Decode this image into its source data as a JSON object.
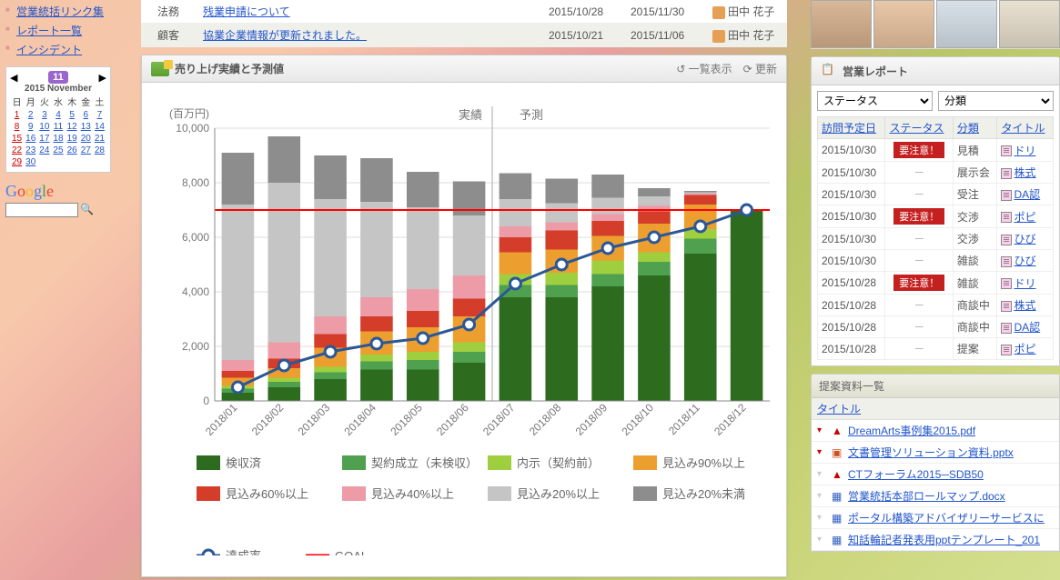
{
  "sidebar": {
    "links": [
      "営業統括リンク集",
      "レポート一覧",
      "インシデント"
    ]
  },
  "calendar": {
    "month_num": "11",
    "month_label": "2015 November",
    "dow": [
      "日",
      "月",
      "火",
      "水",
      "木",
      "金",
      "土"
    ],
    "weeks": [
      [
        1,
        2,
        3,
        4,
        5,
        6,
        7
      ],
      [
        8,
        9,
        10,
        11,
        12,
        13,
        14
      ],
      [
        15,
        16,
        17,
        18,
        19,
        20,
        21
      ],
      [
        22,
        23,
        24,
        25,
        26,
        27,
        28
      ],
      [
        29,
        30,
        null,
        null,
        null,
        null,
        null
      ]
    ]
  },
  "notices": [
    {
      "cat": "法務",
      "title": "残業申請について",
      "date1": "2015/10/28",
      "date2": "2015/11/30",
      "user": "田中 花子"
    },
    {
      "cat": "顧客",
      "title": "協業企業情報が更新されました。",
      "date1": "2015/10/21",
      "date2": "2015/11/06",
      "user": "田中 花子"
    }
  ],
  "chart": {
    "title": "売り上げ実績と予測値",
    "action_list": "一覧表示",
    "action_refresh": "更新",
    "y_label": "(百万円)",
    "y_max": 10000,
    "y_step": 2000,
    "goal": 7000,
    "actual_label": "実績",
    "forecast_label": "予測",
    "actual_months": 6,
    "categories": [
      "2018/01",
      "2018/02",
      "2018/03",
      "2018/04",
      "2018/05",
      "2018/06",
      "2018/07",
      "2018/08",
      "2018/09",
      "2018/10",
      "2018/11",
      "2018/12"
    ],
    "series_order": [
      "kenshuu",
      "keiyaku",
      "naiji",
      "m90",
      "m60",
      "m40",
      "m20",
      "m20u"
    ],
    "series": {
      "kenshuu": {
        "label": "検収済",
        "color": "#2d6b1f"
      },
      "keiyaku": {
        "label": "契約成立（未検収）",
        "color": "#4fa04f"
      },
      "naiji": {
        "label": "内示（契約前）",
        "color": "#9fce3f"
      },
      "m90": {
        "label": "見込み90%以上",
        "color": "#ec9f2e"
      },
      "m60": {
        "label": "見込み60%以上",
        "color": "#d43d2a"
      },
      "m40": {
        "label": "見込み40%以上",
        "color": "#ed9ba6"
      },
      "m20": {
        "label": "見込み20%以上",
        "color": "#c5c5c5"
      },
      "m20u": {
        "label": "見込み20%未満",
        "color": "#8d8d8d"
      }
    },
    "data": [
      {
        "kenshuu": 300,
        "keiyaku": 150,
        "naiji": 100,
        "m90": 300,
        "m60": 250,
        "m40": 400,
        "m20": 5700,
        "m20u": 1900
      },
      {
        "kenshuu": 500,
        "keiyaku": 200,
        "naiji": 150,
        "m90": 350,
        "m60": 350,
        "m40": 600,
        "m20": 5850,
        "m20u": 1700
      },
      {
        "kenshuu": 800,
        "keiyaku": 250,
        "naiji": 200,
        "m90": 700,
        "m60": 500,
        "m40": 650,
        "m20": 4300,
        "m20u": 1600
      },
      {
        "kenshuu": 1150,
        "keiyaku": 300,
        "naiji": 250,
        "m90": 850,
        "m60": 550,
        "m40": 700,
        "m20": 3500,
        "m20u": 1600
      },
      {
        "kenshuu": 1150,
        "keiyaku": 350,
        "naiji": 300,
        "m90": 900,
        "m60": 600,
        "m40": 800,
        "m20": 3000,
        "m20u": 1300
      },
      {
        "kenshuu": 1400,
        "keiyaku": 400,
        "naiji": 350,
        "m90": 950,
        "m60": 650,
        "m40": 850,
        "m20": 2200,
        "m20u": 1250
      },
      {
        "kenshuu": 3800,
        "keiyaku": 450,
        "naiji": 400,
        "m90": 800,
        "m60": 550,
        "m40": 400,
        "m20": 1000,
        "m20u": 950
      },
      {
        "kenshuu": 3800,
        "keiyaku": 450,
        "naiji": 450,
        "m90": 850,
        "m60": 700,
        "m40": 300,
        "m20": 700,
        "m20u": 900
      },
      {
        "kenshuu": 4200,
        "keiyaku": 450,
        "naiji": 500,
        "m90": 900,
        "m60": 550,
        "m40": 250,
        "m20": 600,
        "m20u": 850
      },
      {
        "kenshuu": 4600,
        "keiyaku": 500,
        "naiji": 350,
        "m90": 1050,
        "m60": 450,
        "m40": 200,
        "m20": 350,
        "m20u": 300
      },
      {
        "kenshuu": 5400,
        "keiyaku": 550,
        "naiji": 350,
        "m90": 900,
        "m60": 350,
        "m40": 50,
        "m20": 50,
        "m20u": 50
      },
      {
        "kenshuu": 7000,
        "keiyaku": 0,
        "naiji": 0,
        "m90": 0,
        "m60": 0,
        "m40": 0,
        "m20": 0,
        "m20u": 0
      }
    ],
    "line": {
      "label": "達成率",
      "color": "#2b5797",
      "marker_fill": "#ffffff",
      "values": [
        500,
        1300,
        1800,
        2100,
        2300,
        2800,
        4300,
        5000,
        5600,
        6000,
        6400,
        7000
      ]
    },
    "goal_line": {
      "label": "GOAL",
      "color": "#ff0000"
    }
  },
  "report_panel": {
    "title": "営業レポート",
    "filter_status": "ステータス",
    "filter_cat": "分類",
    "columns": [
      "訪問予定日",
      "ステータス",
      "分類",
      "タイトル"
    ],
    "rows": [
      {
        "date": "2015/10/30",
        "status": "要注意！",
        "status_type": "caution",
        "cat": "見積",
        "title": "ドリ"
      },
      {
        "date": "2015/10/30",
        "status": "－",
        "status_type": "dash",
        "cat": "展示会",
        "title": "株式"
      },
      {
        "date": "2015/10/30",
        "status": "－",
        "status_type": "dash",
        "cat": "受注",
        "title": "DA認"
      },
      {
        "date": "2015/10/30",
        "status": "要注意！",
        "status_type": "caution",
        "cat": "交渉",
        "title": "ポピ"
      },
      {
        "date": "2015/10/30",
        "status": "－",
        "status_type": "dash",
        "cat": "交渉",
        "title": "ひび"
      },
      {
        "date": "2015/10/30",
        "status": "－",
        "status_type": "dash",
        "cat": "雑談",
        "title": "ひび"
      },
      {
        "date": "2015/10/28",
        "status": "要注意！",
        "status_type": "caution",
        "cat": "雑談",
        "title": "ドリ"
      },
      {
        "date": "2015/10/28",
        "status": "－",
        "status_type": "dash",
        "cat": "商談中",
        "title": "株式"
      },
      {
        "date": "2015/10/28",
        "status": "－",
        "status_type": "dash",
        "cat": "商談中",
        "title": "DA認"
      },
      {
        "date": "2015/10/28",
        "status": "－",
        "status_type": "dash",
        "cat": "提案",
        "title": "ポピ"
      }
    ]
  },
  "docs_panel": {
    "title": "提案資料一覧",
    "column": "タイトル",
    "rows": [
      {
        "flag": "red",
        "type": "pdf",
        "name": "DreamArts事例集2015.pdf"
      },
      {
        "flag": "red",
        "type": "ppt",
        "name": "文書管理ソリューション資料.pptx"
      },
      {
        "flag": "grey",
        "type": "pdf",
        "name": "CTフォーラム2015─SDB50"
      },
      {
        "flag": "grey",
        "type": "doc",
        "name": "営業統括本部ロールマップ.docx"
      },
      {
        "flag": "grey",
        "type": "doc",
        "name": "ポータル構築アドバイザリーサービスに"
      },
      {
        "flag": "grey",
        "type": "doc",
        "name": "知話輪記者発表用pptテンプレート_201"
      }
    ]
  }
}
